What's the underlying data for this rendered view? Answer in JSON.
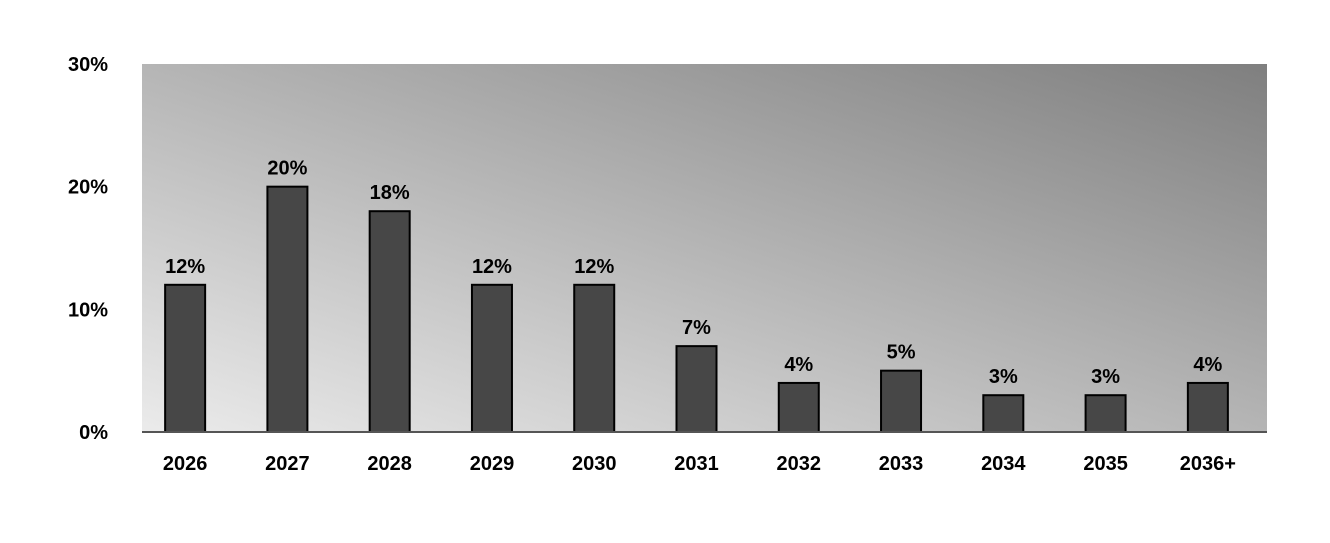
{
  "chart_data": {
    "type": "bar",
    "title": "",
    "xlabel": "",
    "ylabel": "",
    "categories": [
      "2026",
      "2027",
      "2028",
      "2029",
      "2030",
      "2031",
      "2032",
      "2033",
      "2034",
      "2035",
      "2036+"
    ],
    "values": [
      12,
      20,
      18,
      12,
      12,
      7,
      4,
      5,
      3,
      3,
      4
    ],
    "data_labels": [
      "12%",
      "20%",
      "18%",
      "12%",
      "12%",
      "7%",
      "4%",
      "5%",
      "3%",
      "3%",
      "4%"
    ],
    "ylim": [
      0,
      30
    ],
    "yticks": [
      0,
      10,
      20,
      30
    ],
    "ytick_labels": [
      "0%",
      "10%",
      "20%",
      "30%"
    ],
    "grid": false,
    "legend": "none",
    "colors": {
      "bar_fill": "#474747",
      "bar_stroke": "#000000",
      "plot_gradient_light": "#ebebeb",
      "plot_gradient_dark": "#7f7f7f",
      "axis": "#555555"
    }
  }
}
